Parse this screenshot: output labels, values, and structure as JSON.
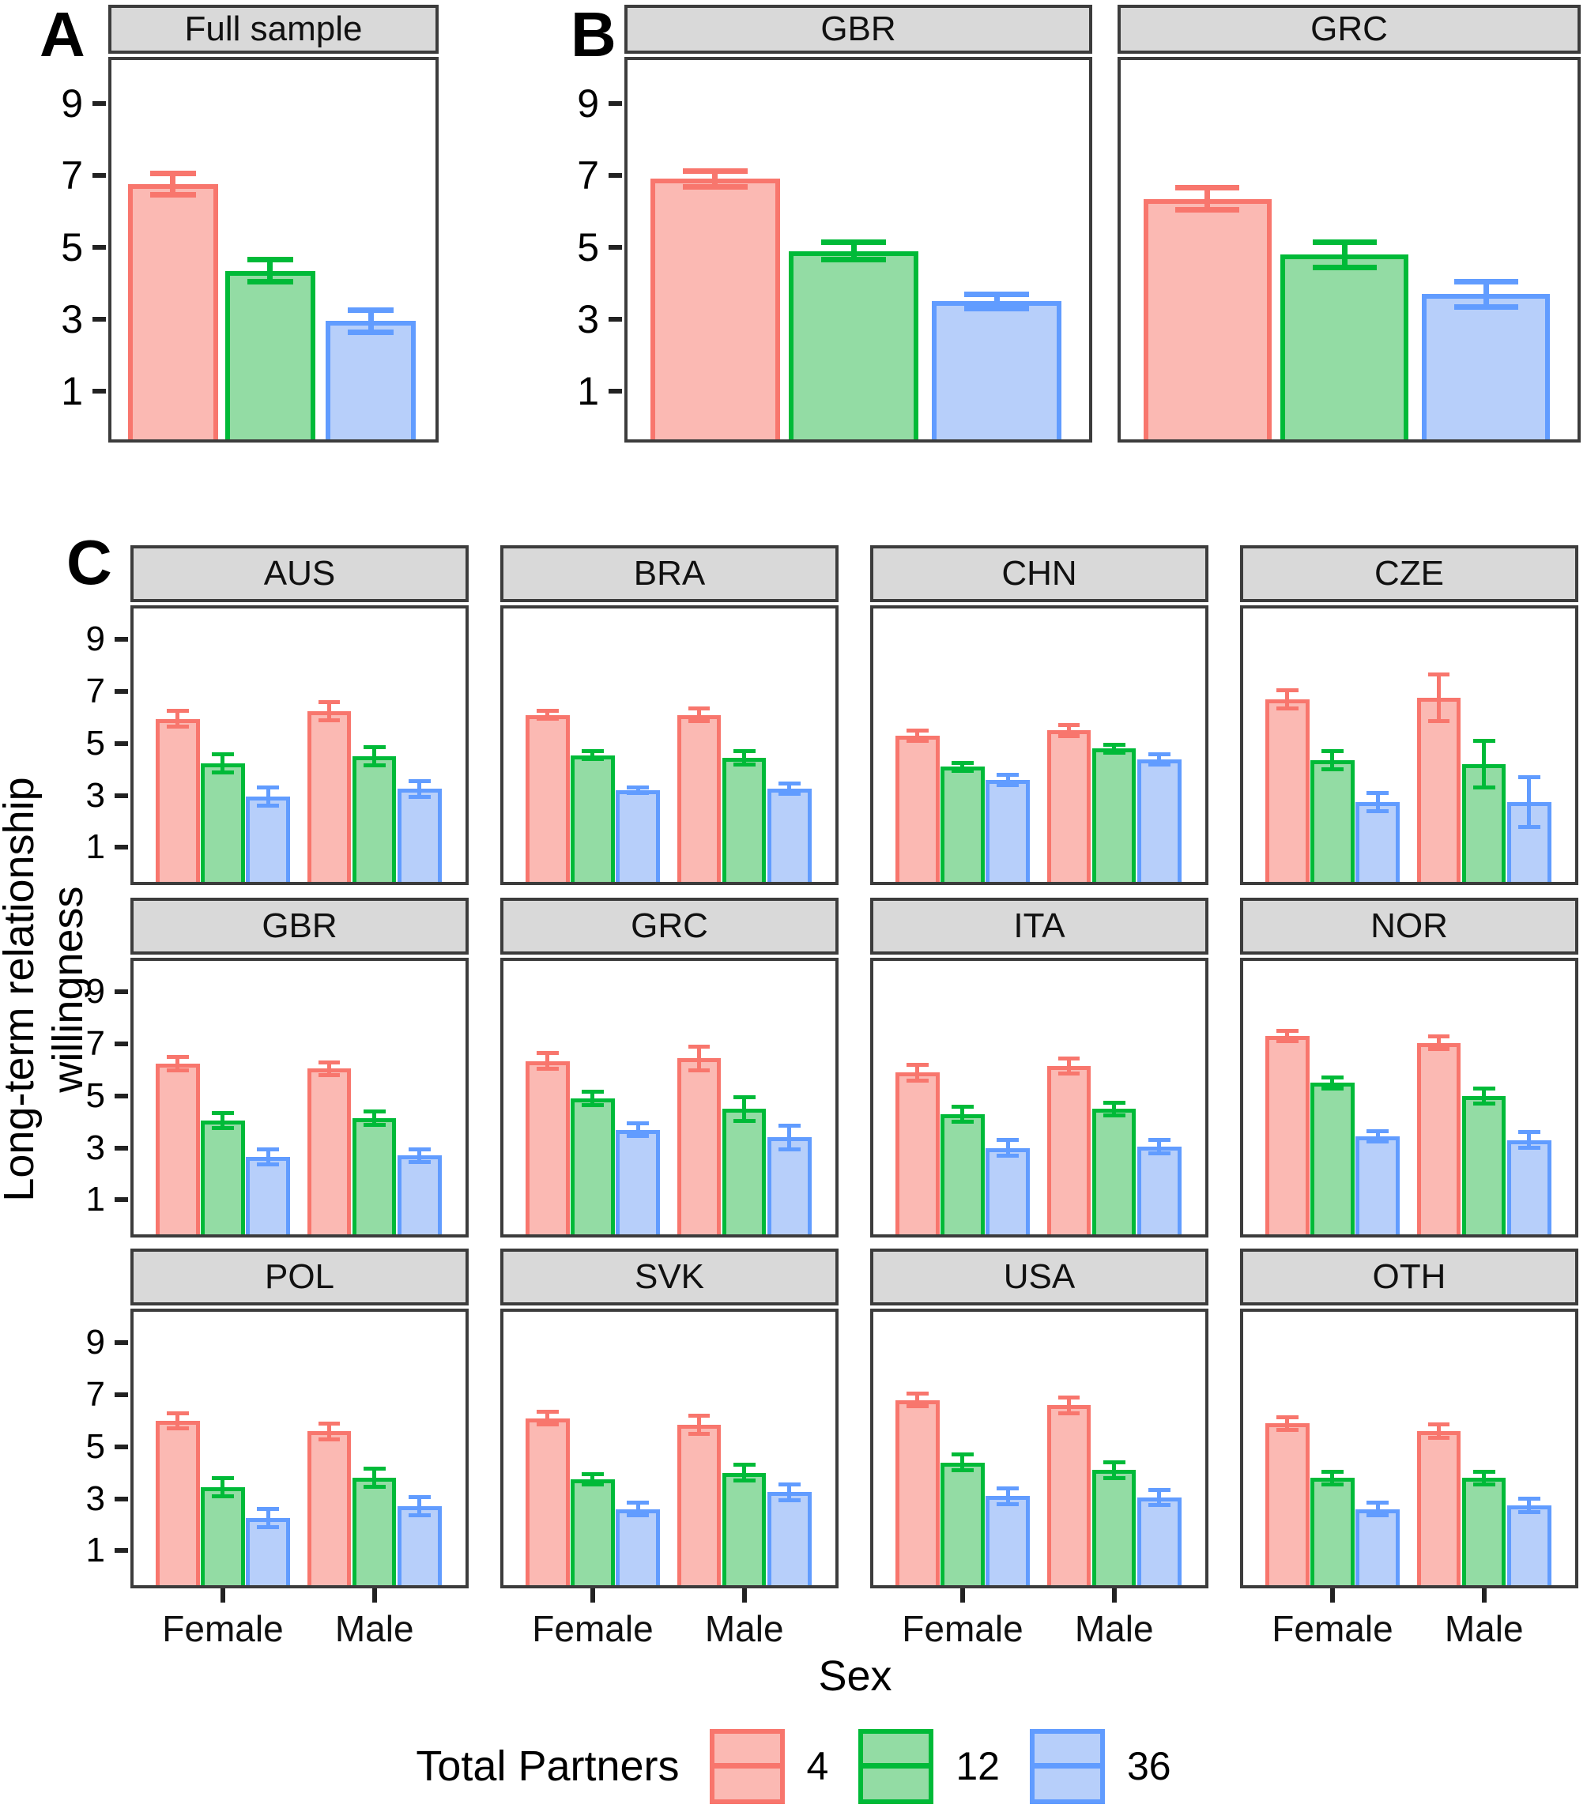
{
  "chart_data": {
    "type": "bar",
    "ylabel": "Long-term relationship willingness",
    "xlabel": "Sex",
    "x_categories": [
      "Female",
      "Male"
    ],
    "y_ticks": [
      1,
      3,
      5,
      7,
      9
    ],
    "ylim": [
      1,
      9
    ],
    "grid": "off",
    "legend": {
      "title": "Total Partners",
      "position": "bottom",
      "entries": [
        {
          "name": "4",
          "stroke": "#F8766D",
          "fill": "#FBB9B3"
        },
        {
          "name": "12",
          "stroke": "#00BA38",
          "fill": "#93DCA4"
        },
        {
          "name": "36",
          "stroke": "#619CFF",
          "fill": "#B7CFFA"
        }
      ]
    },
    "panels": [
      {
        "label": "A",
        "facets": [
          {
            "title": "Full sample",
            "groups": [
              {
                "label": "",
                "bars": [
                  {
                    "series": "4",
                    "value": 6.75,
                    "err": 0.3
                  },
                  {
                    "series": "12",
                    "value": 4.35,
                    "err": 0.3
                  },
                  {
                    "series": "36",
                    "value": 2.95,
                    "err": 0.3
                  }
                ]
              }
            ]
          }
        ]
      },
      {
        "label": "B",
        "facets": [
          {
            "title": "GBR",
            "groups": [
              {
                "label": "",
                "bars": [
                  {
                    "series": "4",
                    "value": 6.9,
                    "err": 0.22
                  },
                  {
                    "series": "12",
                    "value": 4.9,
                    "err": 0.25
                  },
                  {
                    "series": "36",
                    "value": 3.5,
                    "err": 0.2
                  }
                ]
              }
            ]
          },
          {
            "title": "GRC",
            "groups": [
              {
                "label": "",
                "bars": [
                  {
                    "series": "4",
                    "value": 6.35,
                    "err": 0.3
                  },
                  {
                    "series": "12",
                    "value": 4.8,
                    "err": 0.35
                  },
                  {
                    "series": "36",
                    "value": 3.7,
                    "err": 0.35
                  }
                ]
              }
            ]
          }
        ]
      },
      {
        "label": "C",
        "facets": [
          {
            "title": "AUS",
            "groups": [
              {
                "label": "Female",
                "bars": [
                  {
                    "series": "4",
                    "value": 5.95,
                    "err": 0.3
                  },
                  {
                    "series": "12",
                    "value": 4.25,
                    "err": 0.35
                  },
                  {
                    "series": "36",
                    "value": 2.95,
                    "err": 0.35
                  }
                ]
              },
              {
                "label": "Male",
                "bars": [
                  {
                    "series": "4",
                    "value": 6.25,
                    "err": 0.35
                  },
                  {
                    "series": "12",
                    "value": 4.5,
                    "err": 0.35
                  },
                  {
                    "series": "36",
                    "value": 3.25,
                    "err": 0.3
                  }
                ]
              }
            ]
          },
          {
            "title": "BRA",
            "groups": [
              {
                "label": "Female",
                "bars": [
                  {
                    "series": "4",
                    "value": 6.1,
                    "err": 0.15
                  },
                  {
                    "series": "12",
                    "value": 4.55,
                    "err": 0.15
                  },
                  {
                    "series": "36",
                    "value": 3.2,
                    "err": 0.12
                  }
                ]
              },
              {
                "label": "Male",
                "bars": [
                  {
                    "series": "4",
                    "value": 6.1,
                    "err": 0.25
                  },
                  {
                    "series": "12",
                    "value": 4.45,
                    "err": 0.25
                  },
                  {
                    "series": "36",
                    "value": 3.25,
                    "err": 0.2
                  }
                ]
              }
            ]
          },
          {
            "title": "CHN",
            "groups": [
              {
                "label": "Female",
                "bars": [
                  {
                    "series": "4",
                    "value": 5.3,
                    "err": 0.2
                  },
                  {
                    "series": "12",
                    "value": 4.1,
                    "err": 0.15
                  },
                  {
                    "series": "36",
                    "value": 3.6,
                    "err": 0.2
                  }
                ]
              },
              {
                "label": "Male",
                "bars": [
                  {
                    "series": "4",
                    "value": 5.5,
                    "err": 0.2
                  },
                  {
                    "series": "12",
                    "value": 4.8,
                    "err": 0.15
                  },
                  {
                    "series": "36",
                    "value": 4.4,
                    "err": 0.2
                  }
                ]
              }
            ]
          },
          {
            "title": "CZE",
            "groups": [
              {
                "label": "Female",
                "bars": [
                  {
                    "series": "4",
                    "value": 6.7,
                    "err": 0.35
                  },
                  {
                    "series": "12",
                    "value": 4.35,
                    "err": 0.35
                  },
                  {
                    "series": "36",
                    "value": 2.75,
                    "err": 0.35
                  }
                ]
              },
              {
                "label": "Male",
                "bars": [
                  {
                    "series": "4",
                    "value": 6.75,
                    "err": 0.9
                  },
                  {
                    "series": "12",
                    "value": 4.2,
                    "err": 0.9
                  },
                  {
                    "series": "36",
                    "value": 2.75,
                    "err": 0.95
                  }
                ]
              }
            ]
          },
          {
            "title": "GBR",
            "groups": [
              {
                "label": "Female",
                "bars": [
                  {
                    "series": "4",
                    "value": 6.25,
                    "err": 0.25
                  },
                  {
                    "series": "12",
                    "value": 4.05,
                    "err": 0.3
                  },
                  {
                    "series": "36",
                    "value": 2.65,
                    "err": 0.3
                  }
                ]
              },
              {
                "label": "Male",
                "bars": [
                  {
                    "series": "4",
                    "value": 6.05,
                    "err": 0.25
                  },
                  {
                    "series": "12",
                    "value": 4.15,
                    "err": 0.25
                  },
                  {
                    "series": "36",
                    "value": 2.7,
                    "err": 0.25
                  }
                ]
              }
            ]
          },
          {
            "title": "GRC",
            "groups": [
              {
                "label": "Female",
                "bars": [
                  {
                    "series": "4",
                    "value": 6.35,
                    "err": 0.3
                  },
                  {
                    "series": "12",
                    "value": 4.9,
                    "err": 0.25
                  },
                  {
                    "series": "36",
                    "value": 3.7,
                    "err": 0.25
                  }
                ]
              },
              {
                "label": "Male",
                "bars": [
                  {
                    "series": "4",
                    "value": 6.45,
                    "err": 0.45
                  },
                  {
                    "series": "12",
                    "value": 4.5,
                    "err": 0.45
                  },
                  {
                    "series": "36",
                    "value": 3.4,
                    "err": 0.45
                  }
                ]
              }
            ]
          },
          {
            "title": "ITA",
            "groups": [
              {
                "label": "Female",
                "bars": [
                  {
                    "series": "4",
                    "value": 5.9,
                    "err": 0.3
                  },
                  {
                    "series": "12",
                    "value": 4.3,
                    "err": 0.3
                  },
                  {
                    "series": "36",
                    "value": 3.0,
                    "err": 0.3
                  }
                ]
              },
              {
                "label": "Male",
                "bars": [
                  {
                    "series": "4",
                    "value": 6.15,
                    "err": 0.3
                  },
                  {
                    "series": "12",
                    "value": 4.5,
                    "err": 0.25
                  },
                  {
                    "series": "36",
                    "value": 3.05,
                    "err": 0.25
                  }
                ]
              }
            ]
          },
          {
            "title": "NOR",
            "groups": [
              {
                "label": "Female",
                "bars": [
                  {
                    "series": "4",
                    "value": 7.3,
                    "err": 0.2
                  },
                  {
                    "series": "12",
                    "value": 5.5,
                    "err": 0.2
                  },
                  {
                    "series": "36",
                    "value": 3.45,
                    "err": 0.2
                  }
                ]
              },
              {
                "label": "Male",
                "bars": [
                  {
                    "series": "4",
                    "value": 7.05,
                    "err": 0.25
                  },
                  {
                    "series": "12",
                    "value": 5.0,
                    "err": 0.3
                  },
                  {
                    "series": "36",
                    "value": 3.3,
                    "err": 0.3
                  }
                ]
              }
            ]
          },
          {
            "title": "POL",
            "groups": [
              {
                "label": "Female",
                "bars": [
                  {
                    "series": "4",
                    "value": 6.0,
                    "err": 0.3
                  },
                  {
                    "series": "12",
                    "value": 3.45,
                    "err": 0.35
                  },
                  {
                    "series": "36",
                    "value": 2.25,
                    "err": 0.35
                  }
                ]
              },
              {
                "label": "Male",
                "bars": [
                  {
                    "series": "4",
                    "value": 5.6,
                    "err": 0.3
                  },
                  {
                    "series": "12",
                    "value": 3.8,
                    "err": 0.35
                  },
                  {
                    "series": "36",
                    "value": 2.7,
                    "err": 0.35
                  }
                ]
              }
            ]
          },
          {
            "title": "SVK",
            "groups": [
              {
                "label": "Female",
                "bars": [
                  {
                    "series": "4",
                    "value": 6.1,
                    "err": 0.25
                  },
                  {
                    "series": "12",
                    "value": 3.75,
                    "err": 0.2
                  },
                  {
                    "series": "36",
                    "value": 2.6,
                    "err": 0.25
                  }
                ]
              },
              {
                "label": "Male",
                "bars": [
                  {
                    "series": "4",
                    "value": 5.85,
                    "err": 0.35
                  },
                  {
                    "series": "12",
                    "value": 4.0,
                    "err": 0.3
                  },
                  {
                    "series": "36",
                    "value": 3.25,
                    "err": 0.3
                  }
                ]
              }
            ]
          },
          {
            "title": "USA",
            "groups": [
              {
                "label": "Female",
                "bars": [
                  {
                    "series": "4",
                    "value": 6.8,
                    "err": 0.25
                  },
                  {
                    "series": "12",
                    "value": 4.4,
                    "err": 0.3
                  },
                  {
                    "series": "36",
                    "value": 3.1,
                    "err": 0.3
                  }
                ]
              },
              {
                "label": "Male",
                "bars": [
                  {
                    "series": "4",
                    "value": 6.6,
                    "err": 0.3
                  },
                  {
                    "series": "12",
                    "value": 4.1,
                    "err": 0.3
                  },
                  {
                    "series": "36",
                    "value": 3.05,
                    "err": 0.3
                  }
                ]
              }
            ]
          },
          {
            "title": "OTH",
            "groups": [
              {
                "label": "Female",
                "bars": [
                  {
                    "series": "4",
                    "value": 5.9,
                    "err": 0.25
                  },
                  {
                    "series": "12",
                    "value": 3.8,
                    "err": 0.25
                  },
                  {
                    "series": "36",
                    "value": 2.6,
                    "err": 0.25
                  }
                ]
              },
              {
                "label": "Male",
                "bars": [
                  {
                    "series": "4",
                    "value": 5.6,
                    "err": 0.25
                  },
                  {
                    "series": "12",
                    "value": 3.8,
                    "err": 0.25
                  },
                  {
                    "series": "36",
                    "value": 2.75,
                    "err": 0.25
                  }
                ]
              }
            ]
          }
        ]
      }
    ]
  }
}
